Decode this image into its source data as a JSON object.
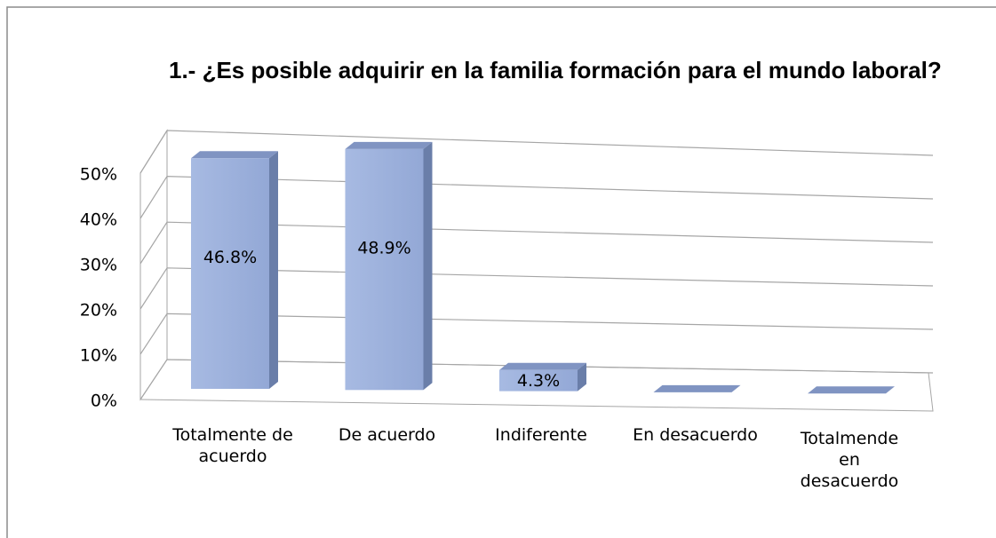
{
  "chart_data": {
    "type": "bar3d",
    "title": "1.- ¿Es posible adquirir en la familia formación para el mundo laboral?",
    "categories": [
      "Totalmente de acuerdo",
      "De acuerdo",
      "Indiferente",
      "En desacuerdo",
      "Totalmende en desacuerdo"
    ],
    "values": [
      46.8,
      48.9,
      4.3,
      0,
      0
    ],
    "value_labels": [
      "46.8%",
      "48.9%",
      "4.3%",
      null,
      null
    ],
    "color": "#9db1db",
    "ylim": [
      0,
      50
    ],
    "yticks": [
      {
        "value": 0,
        "label": "0%"
      },
      {
        "value": 10,
        "label": "10%"
      },
      {
        "value": 20,
        "label": "20%"
      },
      {
        "value": 30,
        "label": "30%"
      },
      {
        "value": 40,
        "label": "40%"
      },
      {
        "value": 50,
        "label": "50%"
      }
    ],
    "grid": true
  }
}
